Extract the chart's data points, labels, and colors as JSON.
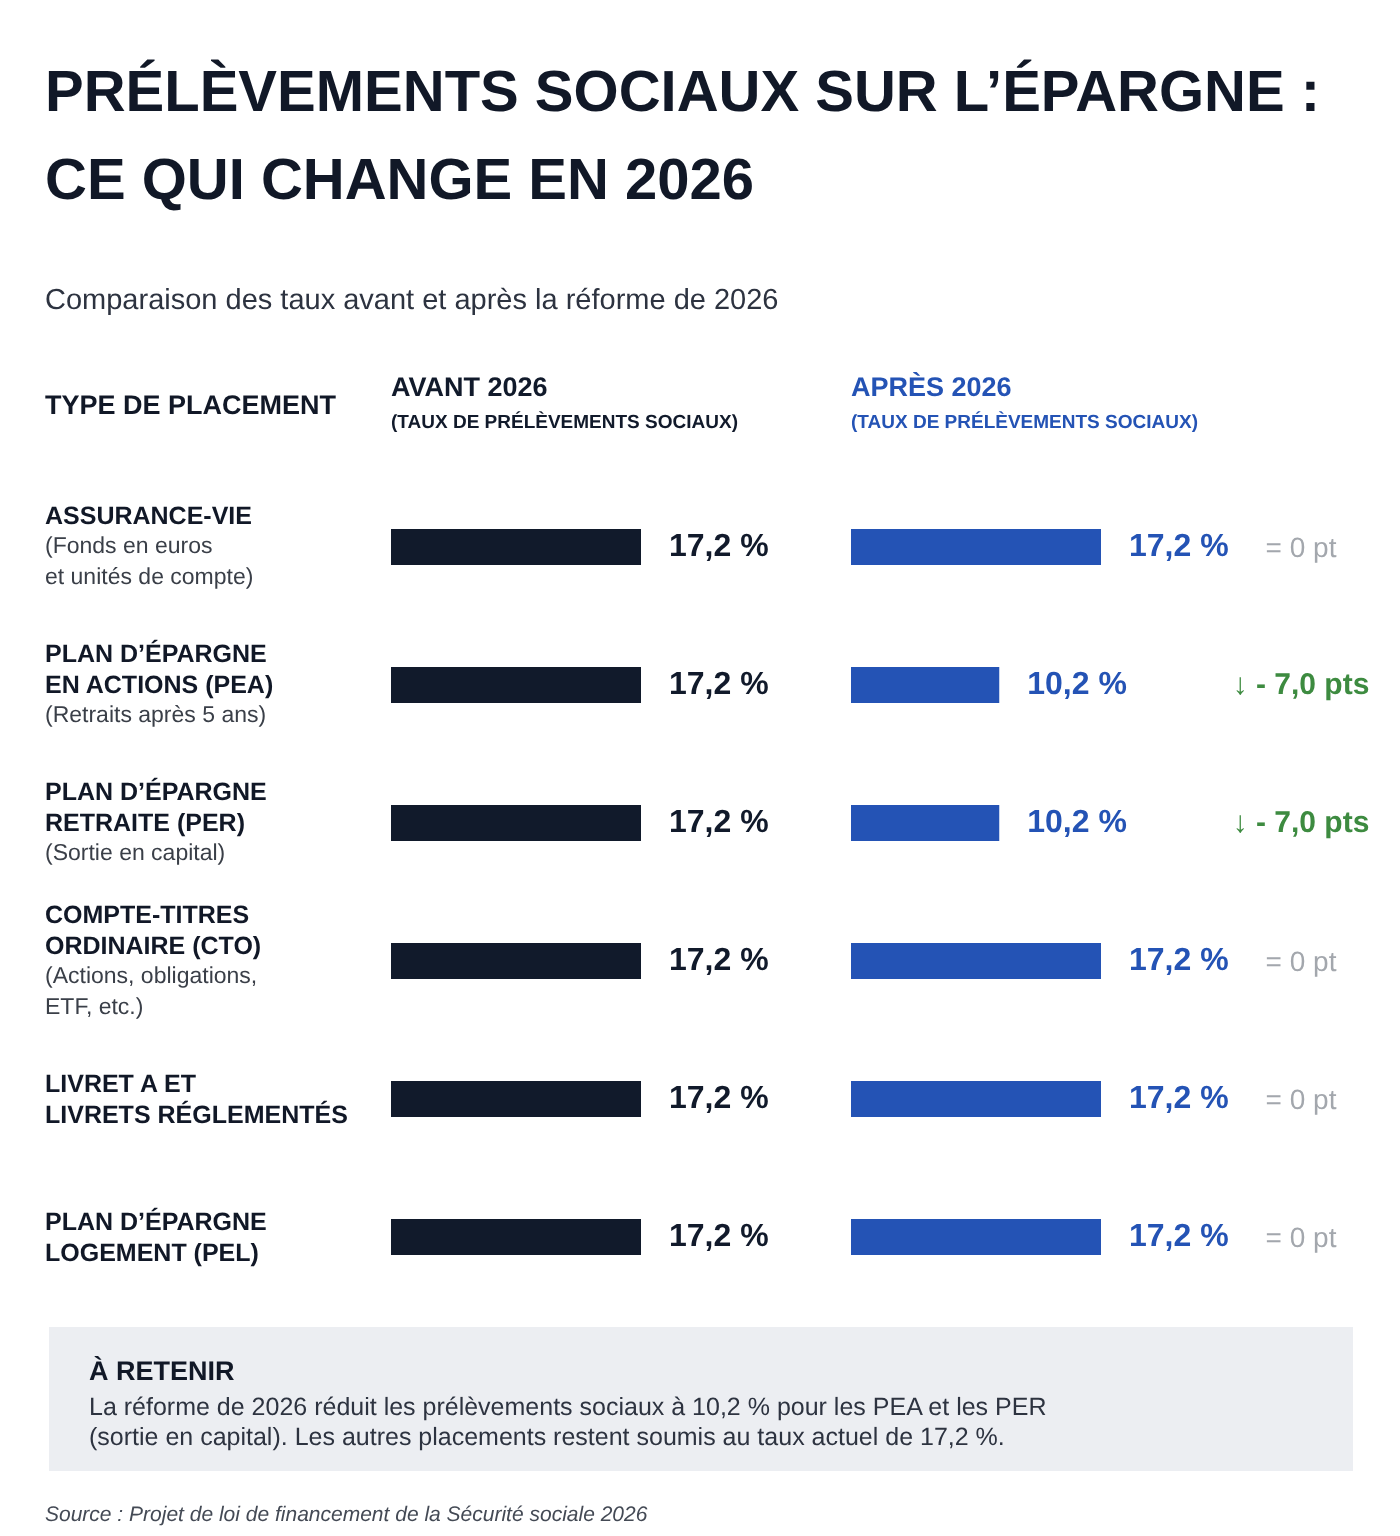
{
  "chart_data": [
    {
      "type": "bar",
      "orientation": "horizontal",
      "title": "PRÉLÈVEMENTS SOCIAUX SUR L’ÉPARGNE :\nCE QUI CHANGE EN 2026",
      "subtitle": "Comparaison des taux avant et après la réforme de 2026",
      "ylabel": "TYPE DE PLACEMENT",
      "categories": [
        "ASSURANCE-VIE\n(Fonds en euros\net unités de compte)",
        "PLAN D’ÉPARGNE\nEN ACTIONS (PEA)\n(Retraits après 5 ans)",
        "PLAN D’ÉPARGNE\nRETRAITE (PER)\n(Sortie en capital)",
        "COMPTE-TITRES\nORDINAIRE (CTO)\n(Actions, obligations,\nETF, etc.)",
        "LIVRET A ET\nLIVRETS RÉGLEMENTÉS",
        "PLAN D’ÉPARGNE\nLOGEMENT (PEL)"
      ],
      "series": [
        {
          "name": "AVANT 2026\n(TAUX DE PRÉLÈVEMENTS SOCIAUX)",
          "color": "#111a2b",
          "values": [
            17.2,
            17.2,
            17.2,
            17.2,
            17.2,
            17.2
          ],
          "value_labels": [
            "17,2 %",
            "17,2 %",
            "17,2 %",
            "17,2 %",
            "17,2 %",
            "17,2 %"
          ]
        }
      ],
      "annotations": [
        "À RETENIR\nLa réforme de 2026 réduit les prélèvements sociaux à 10,2 % pour les PEA et les PER\n(sortie en capital). Les autres placements restent soumis au taux actuel de 17,2 %.",
        "Source : Projet de loi de financement de la Sécurité sociale 2026"
      ]
    },
    {
      "type": "bar",
      "orientation": "horizontal",
      "tick_labels": false,
      "categories": [
        "ASSURANCE-VIE\n(Fonds en euros\net unités de compte)",
        "PLAN D’ÉPARGNE\nEN ACTIONS (PEA)\n(Retraits après 5 ans)",
        "PLAN D’ÉPARGNE\nRETRAITE (PER)\n(Sortie en capital)",
        "COMPTE-TITRES\nORDINAIRE (CTO)\n(Actions, obligations,\nETF, etc.)",
        "LIVRET A ET\nLIVRETS RÉGLEMENTÉS",
        "PLAN D’ÉPARGNE\nLOGEMENT (PEL)"
      ],
      "series": [
        {
          "name": "APRÈS 2026\n(TAUX DE PRÉLÈVEMENTS SOCIAUX)",
          "color": "#2453b5",
          "values": [
            17.2,
            10.2,
            10.2,
            17.2,
            17.2,
            17.2
          ],
          "value_labels": [
            "17,2 %",
            "10,2 %",
            "10,2 %",
            "17,2 %",
            "17,2 %",
            "17,2 %"
          ]
        }
      ],
      "annotations": [
        "= 0 pt",
        "↓ - 7,0 pts",
        "↓ - 7,0 pts",
        "= 0 pt",
        "= 0 pt",
        "= 0 pt"
      ]
    }
  ]
}
